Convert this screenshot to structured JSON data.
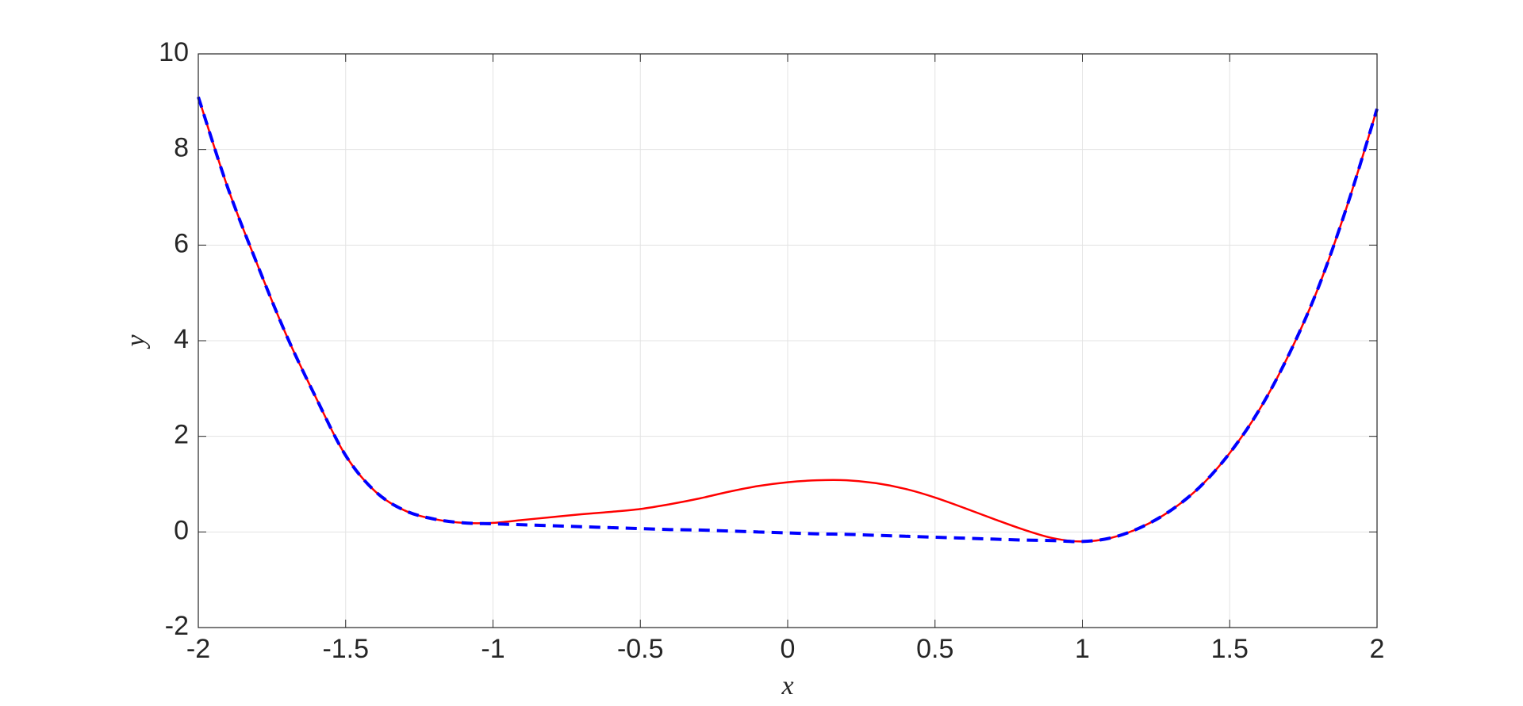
{
  "chart_data": {
    "type": "line",
    "x_label": "x",
    "y_label": "y",
    "x": [
      -2,
      -1.9,
      -1.8,
      -1.7,
      -1.6,
      -1.5,
      -1.4,
      -1.3,
      -1.2,
      -1.1,
      -1,
      -0.9,
      -0.8,
      -0.7,
      -0.6,
      -0.5,
      -0.4,
      -0.3,
      -0.2,
      -0.1,
      0,
      0.1,
      0.2,
      0.3,
      0.4,
      0.5,
      0.6,
      0.7,
      0.8,
      0.9,
      1,
      1.1,
      1.2,
      1.3,
      1.4,
      1.5,
      1.6,
      1.7,
      1.8,
      1.9,
      2
    ],
    "series": [
      {
        "color": "#ff0000",
        "dash": false,
        "values": [
          9.1,
          7.2,
          5.6,
          4.1,
          2.8,
          1.6,
          0.85,
          0.45,
          0.27,
          0.19,
          0.19,
          0.25,
          0.31,
          0.37,
          0.42,
          0.48,
          0.58,
          0.7,
          0.84,
          0.96,
          1.04,
          1.08,
          1.08,
          1.02,
          0.9,
          0.72,
          0.5,
          0.27,
          0.05,
          -0.13,
          -0.2,
          -0.12,
          0.1,
          0.45,
          0.95,
          1.65,
          2.55,
          3.7,
          5.1,
          6.85,
          8.85
        ]
      },
      {
        "color": "#0000ff",
        "dash": true,
        "values": [
          9.1,
          7.2,
          5.6,
          4.1,
          2.8,
          1.6,
          0.85,
          0.45,
          0.27,
          0.19,
          0.17,
          0.15,
          0.13,
          0.11,
          0.09,
          0.07,
          0.05,
          0.04,
          0.02,
          0.0,
          -0.02,
          -0.04,
          -0.05,
          -0.07,
          -0.09,
          -0.11,
          -0.13,
          -0.15,
          -0.17,
          -0.18,
          -0.2,
          -0.12,
          0.1,
          0.45,
          0.95,
          1.65,
          2.55,
          3.7,
          5.1,
          6.85,
          8.85
        ]
      }
    ],
    "xlim": [
      -2,
      2
    ],
    "ylim": [
      -2,
      10
    ],
    "xticks": [
      -2,
      -1.5,
      -1,
      -0.5,
      0,
      0.5,
      1,
      1.5,
      2
    ],
    "yticks": [
      -2,
      0,
      2,
      4,
      6,
      8,
      10
    ],
    "grid": true
  }
}
